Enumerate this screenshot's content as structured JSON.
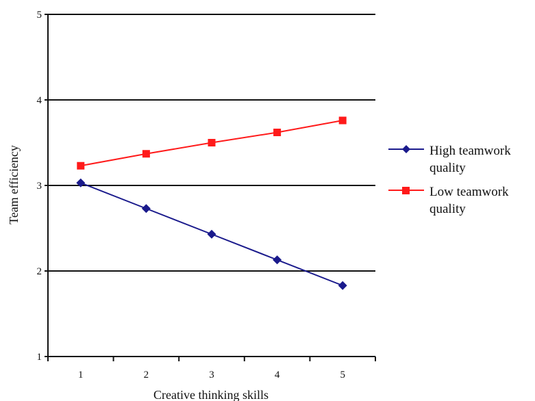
{
  "chart_data": {
    "type": "line",
    "title": "",
    "xlabel": "Creative thinking skills",
    "ylabel": "Team efficiency",
    "x": [
      1,
      2,
      3,
      4,
      5
    ],
    "xlim": [
      0.5,
      5.5
    ],
    "ylim": [
      1,
      5
    ],
    "x_ticks": [
      "1",
      "2",
      "3",
      "4",
      "5"
    ],
    "y_ticks": [
      "1",
      "2",
      "3",
      "4",
      "5"
    ],
    "grid": "horizontal major gridlines at 2, 3, 4, 5",
    "legend_position": "right",
    "series": [
      {
        "name_lines": [
          "High teamwork",
          "quality"
        ],
        "name": "High teamwork quality",
        "values": [
          3.03,
          2.73,
          2.43,
          2.13,
          1.83
        ],
        "color": "#1a1a8c",
        "marker": "diamond"
      },
      {
        "name_lines": [
          "Low teamwork",
          "quality"
        ],
        "name": "Low teamwork quality",
        "values": [
          3.23,
          3.37,
          3.5,
          3.62,
          3.76
        ],
        "color": "#ff1a1a",
        "marker": "square"
      }
    ]
  }
}
